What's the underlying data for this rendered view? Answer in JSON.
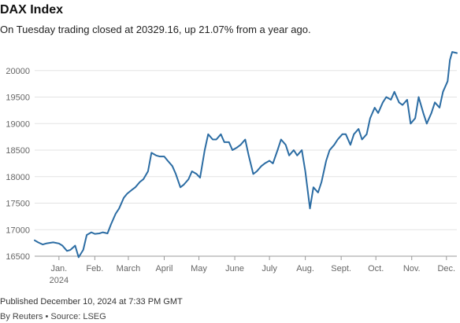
{
  "header": {
    "title": "DAX Index",
    "subtitle": "On Tuesday trading closed at 20329.16, up 21.07% from a year ago."
  },
  "footer": {
    "published": "Published December 10, 2024 at 7:33 PM GMT",
    "source": "By Reuters • Source: LSEG"
  },
  "colors": {
    "line": "#2b6ca3",
    "grid": "#e3e3e3",
    "axis": "#999999"
  },
  "chart_data": {
    "type": "line",
    "title": "DAX Index",
    "xlabel": "",
    "ylabel": "",
    "ylim": [
      16500,
      20500
    ],
    "yticks": [
      16500,
      17000,
      17500,
      18000,
      18500,
      19000,
      19500,
      20000
    ],
    "yticklabels": [
      "16500",
      "17000",
      "17500",
      "18000",
      "18500",
      "19000",
      "19500",
      "20000"
    ],
    "xlim": [
      "2023-12-11",
      "2024-12-10"
    ],
    "xticks": [
      {
        "date": "2024-01-01",
        "label": "Jan.",
        "sublabel": "2024"
      },
      {
        "date": "2024-02-01",
        "label": "Feb."
      },
      {
        "date": "2024-03-01",
        "label": "March"
      },
      {
        "date": "2024-04-01",
        "label": "April"
      },
      {
        "date": "2024-05-01",
        "label": "May"
      },
      {
        "date": "2024-06-01",
        "label": "June"
      },
      {
        "date": "2024-07-01",
        "label": "July"
      },
      {
        "date": "2024-08-01",
        "label": "Aug."
      },
      {
        "date": "2024-09-01",
        "label": "Sept."
      },
      {
        "date": "2024-10-01",
        "label": "Oct."
      },
      {
        "date": "2024-11-01",
        "label": "Nov."
      },
      {
        "date": "2024-12-01",
        "label": "Dec."
      }
    ],
    "grid": true,
    "series": [
      {
        "x": [
          "2023-12-11",
          "2023-12-14",
          "2023-12-18",
          "2023-12-21",
          "2023-12-27",
          "2024-01-01",
          "2024-01-04",
          "2024-01-08",
          "2024-01-11",
          "2024-01-15",
          "2024-01-18",
          "2024-01-22",
          "2024-01-25",
          "2024-01-29",
          "2024-02-01",
          "2024-02-05",
          "2024-02-08",
          "2024-02-12",
          "2024-02-15",
          "2024-02-19",
          "2024-02-22",
          "2024-02-26",
          "2024-02-29",
          "2024-03-04",
          "2024-03-07",
          "2024-03-11",
          "2024-03-14",
          "2024-03-18",
          "2024-03-21",
          "2024-03-25",
          "2024-03-28",
          "2024-04-01",
          "2024-04-04",
          "2024-04-08",
          "2024-04-11",
          "2024-04-15",
          "2024-04-18",
          "2024-04-22",
          "2024-04-25",
          "2024-04-29",
          "2024-05-02",
          "2024-05-06",
          "2024-05-09",
          "2024-05-13",
          "2024-05-16",
          "2024-05-20",
          "2024-05-23",
          "2024-05-27",
          "2024-05-30",
          "2024-06-03",
          "2024-06-06",
          "2024-06-10",
          "2024-06-13",
          "2024-06-17",
          "2024-06-20",
          "2024-06-24",
          "2024-06-27",
          "2024-07-01",
          "2024-07-04",
          "2024-07-08",
          "2024-07-11",
          "2024-07-15",
          "2024-07-18",
          "2024-07-22",
          "2024-07-25",
          "2024-07-29",
          "2024-08-01",
          "2024-08-05",
          "2024-08-08",
          "2024-08-12",
          "2024-08-15",
          "2024-08-19",
          "2024-08-22",
          "2024-08-26",
          "2024-08-29",
          "2024-09-02",
          "2024-09-05",
          "2024-09-09",
          "2024-09-12",
          "2024-09-16",
          "2024-09-19",
          "2024-09-23",
          "2024-09-26",
          "2024-09-30",
          "2024-10-03",
          "2024-10-07",
          "2024-10-10",
          "2024-10-14",
          "2024-10-17",
          "2024-10-21",
          "2024-10-24",
          "2024-10-28",
          "2024-10-31",
          "2024-11-04",
          "2024-11-07",
          "2024-11-11",
          "2024-11-14",
          "2024-11-18",
          "2024-11-21",
          "2024-11-25",
          "2024-11-28",
          "2024-12-02",
          "2024-12-04",
          "2024-12-06",
          "2024-12-10"
        ],
        "values": [
          16800,
          16760,
          16720,
          16740,
          16760,
          16740,
          16700,
          16600,
          16620,
          16700,
          16480,
          16620,
          16900,
          16950,
          16920,
          16930,
          16950,
          16930,
          17100,
          17300,
          17400,
          17600,
          17680,
          17750,
          17800,
          17900,
          17950,
          18100,
          18450,
          18400,
          18380,
          18380,
          18300,
          18200,
          18050,
          17800,
          17850,
          17950,
          18100,
          18050,
          17980,
          18500,
          18800,
          18700,
          18700,
          18800,
          18650,
          18650,
          18500,
          18550,
          18600,
          18700,
          18400,
          18050,
          18100,
          18200,
          18250,
          18300,
          18250,
          18500,
          18700,
          18600,
          18400,
          18500,
          18400,
          18500,
          18100,
          17400,
          17800,
          17700,
          17900,
          18300,
          18500,
          18600,
          18700,
          18800,
          18800,
          18600,
          18800,
          18900,
          18700,
          18800,
          19100,
          19300,
          19200,
          19400,
          19500,
          19450,
          19600,
          19400,
          19350,
          19450,
          19000,
          19100,
          19500,
          19200,
          19000,
          19200,
          19400,
          19300,
          19600,
          19800,
          20200,
          20350,
          20330
        ]
      }
    ]
  }
}
